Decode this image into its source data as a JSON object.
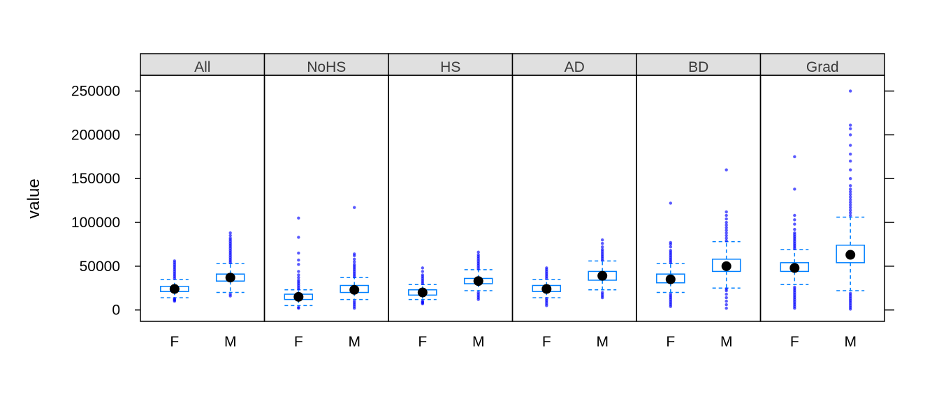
{
  "chart_data": {
    "type": "box",
    "ylabel": "value",
    "ylim": [
      -13000,
      268000
    ],
    "y_ticks": [
      0,
      50000,
      100000,
      150000,
      200000,
      250000
    ],
    "y_tick_labels": [
      "0",
      "50000",
      "100000",
      "150000",
      "200000",
      "250000"
    ],
    "categories": [
      "F",
      "M"
    ],
    "panels": [
      {
        "label": "All",
        "boxes": [
          {
            "category": "F",
            "min": 14000,
            "q1": 21000,
            "median": 24000,
            "q3": 27000,
            "max": 35000,
            "mean": 24000,
            "outliers": [
              10000,
              11000,
              12000,
              13000,
              36000,
              38000,
              40000,
              42000,
              44000,
              46000,
              48000,
              50000,
              52000,
              54000,
              56000
            ]
          },
          {
            "category": "M",
            "min": 20000,
            "q1": 33000,
            "median": 37000,
            "q3": 41000,
            "max": 53000,
            "mean": 37000,
            "outliers": [
              16000,
              18000,
              54000,
              56000,
              58000,
              60000,
              62000,
              64000,
              66000,
              68000,
              70000,
              72000,
              74000,
              76000,
              78000,
              80000,
              82000,
              85000,
              88000
            ]
          }
        ]
      },
      {
        "label": "NoHS",
        "boxes": [
          {
            "category": "F",
            "min": 5000,
            "q1": 12000,
            "median": 15000,
            "q3": 18000,
            "max": 23000,
            "mean": 14000,
            "outliers": [
              2000,
              3000,
              24000,
              26000,
              28000,
              30000,
              32000,
              34000,
              37000,
              40000,
              44000,
              52000,
              57000,
              65000,
              83000,
              105000
            ]
          },
          {
            "category": "M",
            "min": 12000,
            "q1": 20000,
            "median": 23000,
            "q3": 28000,
            "max": 37000,
            "mean": 23000,
            "outliers": [
              2000,
              4000,
              6000,
              8000,
              10000,
              38000,
              40000,
              42000,
              44000,
              46000,
              48000,
              50000,
              52000,
              55000,
              58000,
              62000,
              64000,
              117000
            ]
          }
        ]
      },
      {
        "label": "HS",
        "boxes": [
          {
            "category": "F",
            "min": 12000,
            "q1": 17000,
            "median": 20000,
            "q3": 23000,
            "max": 29000,
            "mean": 20000,
            "outliers": [
              7000,
              8000,
              9000,
              10000,
              30000,
              32000,
              34000,
              36000,
              38000,
              40000,
              44000,
              48000
            ]
          },
          {
            "category": "M",
            "min": 22000,
            "q1": 30000,
            "median": 33000,
            "q3": 36000,
            "max": 46000,
            "mean": 33000,
            "outliers": [
              12000,
              14000,
              16000,
              18000,
              20000,
              47000,
              49000,
              51000,
              53000,
              55000,
              57000,
              59000,
              61000,
              63000,
              66000
            ]
          }
        ]
      },
      {
        "label": "AD",
        "boxes": [
          {
            "category": "F",
            "min": 14000,
            "q1": 21000,
            "median": 24000,
            "q3": 28000,
            "max": 35000,
            "mean": 25000,
            "outliers": [
              5000,
              7000,
              9000,
              11000,
              13000,
              36000,
              38000,
              40000,
              42000,
              44000,
              46000,
              48000
            ]
          },
          {
            "category": "M",
            "min": 23000,
            "q1": 34000,
            "median": 39000,
            "q3": 44000,
            "max": 56000,
            "mean": 39000,
            "outliers": [
              14000,
              16000,
              18000,
              20000,
              57000,
              59000,
              61000,
              63000,
              65000,
              67000,
              69000,
              72000,
              76000,
              80000
            ]
          }
        ]
      },
      {
        "label": "BD",
        "boxes": [
          {
            "category": "F",
            "min": 20000,
            "q1": 31000,
            "median": 35000,
            "q3": 41000,
            "max": 53000,
            "mean": 36000,
            "outliers": [
              4000,
              6000,
              8000,
              10000,
              12000,
              14000,
              16000,
              18000,
              54000,
              56000,
              58000,
              60000,
              62000,
              64000,
              66000,
              68000,
              72000,
              75000,
              77000,
              122000
            ]
          },
          {
            "category": "M",
            "min": 25000,
            "q1": 44000,
            "median": 50000,
            "q3": 58000,
            "max": 78000,
            "mean": 51000,
            "outliers": [
              2000,
              6000,
              10000,
              14000,
              18000,
              22000,
              24000,
              79000,
              82000,
              85000,
              88000,
              91000,
              94000,
              97000,
              100000,
              104000,
              108000,
              112000,
              160000
            ]
          }
        ]
      },
      {
        "label": "Grad",
        "boxes": [
          {
            "category": "F",
            "min": 29000,
            "q1": 44000,
            "median": 48000,
            "q3": 54000,
            "max": 69000,
            "mean": 48000,
            "outliers": [
              2000,
              4000,
              6000,
              8000,
              10000,
              12000,
              14000,
              16000,
              18000,
              20000,
              22000,
              24000,
              26000,
              70000,
              72000,
              74000,
              76000,
              78000,
              80000,
              82000,
              84000,
              86000,
              88000,
              92000,
              98000,
              103000,
              108000,
              138000,
              175000
            ]
          },
          {
            "category": "M",
            "min": 22000,
            "q1": 54000,
            "median": 63000,
            "q3": 74000,
            "max": 106000,
            "mean": 63000,
            "outliers": [
              1000,
              3000,
              5000,
              7000,
              9000,
              11000,
              13000,
              15000,
              17000,
              19000,
              108000,
              111000,
              114000,
              117000,
              120000,
              123000,
              126000,
              129000,
              132000,
              135000,
              138000,
              142000,
              150000,
              160000,
              170000,
              178000,
              188000,
              200000,
              207000,
              211000,
              250000
            ]
          }
        ]
      }
    ],
    "colors": {
      "box": "#0080ff",
      "points": "#0000ff",
      "mean_dot": "#000000",
      "strip": "#e0e0e0",
      "frame": "#000000"
    }
  }
}
